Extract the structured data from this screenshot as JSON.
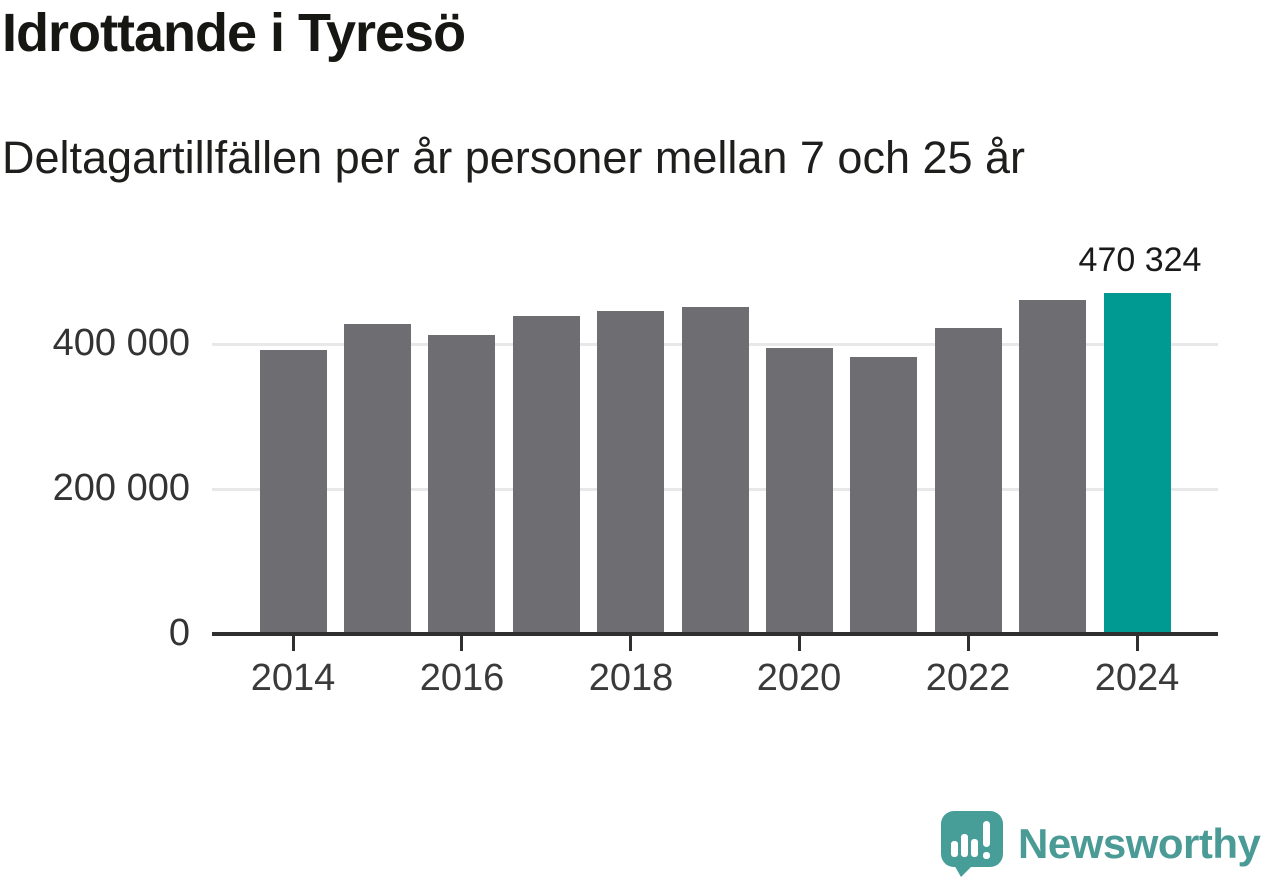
{
  "title": "Idrottande i Tyresö",
  "subtitle": "Deltagartillfällen per år personer mellan 7 och 25 år",
  "logo": {
    "text": "Newsworthy"
  },
  "colors": {
    "bar_default": "#6d6d72",
    "bar_highlight": "#009a92",
    "gridline": "#e8e8e8",
    "axis": "#2f2f2f",
    "logo_teal": "#479e99",
    "logo_text": "#4a9a95"
  },
  "chart_data": {
    "type": "bar",
    "categories": [
      2014,
      2015,
      2016,
      2017,
      2018,
      2019,
      2020,
      2021,
      2022,
      2023,
      2024
    ],
    "values": [
      392000,
      427000,
      412000,
      439000,
      446000,
      451000,
      394000,
      382000,
      422000,
      460000,
      470324
    ],
    "highlight_index": 10,
    "data_label": {
      "index": 10,
      "text": "470 324"
    },
    "title": "Idrottande i Tyresö",
    "subtitle": "Deltagartillfällen per år personer mellan 7 och 25 år",
    "xlabel": "",
    "ylabel": "",
    "ylim": [
      0,
      483000
    ],
    "yticks": [
      0,
      200000,
      400000
    ],
    "ytick_labels": [
      "0",
      "200 000",
      "400 000"
    ],
    "xticks": [
      2014,
      2016,
      2018,
      2020,
      2022,
      2024
    ],
    "xtick_labels": [
      "2014",
      "2016",
      "2018",
      "2020",
      "2022",
      "2024"
    ],
    "grid": "horizontal",
    "legend": "none"
  }
}
